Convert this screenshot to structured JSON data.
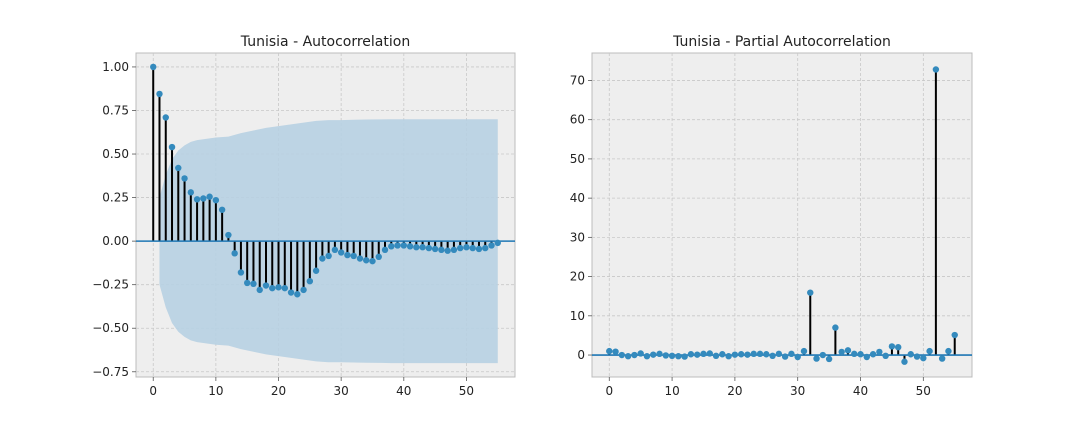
{
  "chart_data": [
    {
      "type": "stem",
      "title": "Tunisia - Autocorrelation",
      "xlabel": "",
      "ylabel": "",
      "xlim": [
        -2.75,
        57.75
      ],
      "ylim": [
        -0.78,
        1.08
      ],
      "xticks": [
        0,
        10,
        20,
        30,
        40,
        50
      ],
      "yticks": [
        -0.75,
        -0.5,
        -0.25,
        0.0,
        0.25,
        0.5,
        0.75,
        1.0
      ],
      "ytick_labels": [
        "−0.75",
        "−0.50",
        "−0.25",
        "0.00",
        "0.25",
        "0.50",
        "0.75",
        "1.00"
      ],
      "grid": true,
      "colors": {
        "marker": "#348abd",
        "band": "#b7d0e2",
        "zero_line": "#1f77b4",
        "stem": "#000000"
      },
      "x": [
        0,
        1,
        2,
        3,
        4,
        5,
        6,
        7,
        8,
        9,
        10,
        11,
        12,
        13,
        14,
        15,
        16,
        17,
        18,
        19,
        20,
        21,
        22,
        23,
        24,
        25,
        26,
        27,
        28,
        29,
        30,
        31,
        32,
        33,
        34,
        35,
        36,
        37,
        38,
        39,
        40,
        41,
        42,
        43,
        44,
        45,
        46,
        47,
        48,
        49,
        50,
        51,
        52,
        53,
        54,
        55
      ],
      "values": [
        1.0,
        0.845,
        0.71,
        0.54,
        0.42,
        0.36,
        0.28,
        0.24,
        0.245,
        0.255,
        0.235,
        0.18,
        0.035,
        -0.07,
        -0.18,
        -0.24,
        -0.245,
        -0.28,
        -0.255,
        -0.27,
        -0.265,
        -0.27,
        -0.295,
        -0.305,
        -0.28,
        -0.23,
        -0.17,
        -0.1,
        -0.085,
        -0.05,
        -0.065,
        -0.08,
        -0.085,
        -0.1,
        -0.11,
        -0.115,
        -0.09,
        -0.05,
        -0.03,
        -0.025,
        -0.025,
        -0.03,
        -0.035,
        -0.035,
        -0.04,
        -0.045,
        -0.05,
        -0.055,
        -0.05,
        -0.04,
        -0.035,
        -0.04,
        -0.045,
        -0.04,
        -0.025,
        -0.01
      ],
      "confidence_band": {
        "x": [
          1,
          2,
          3,
          4,
          5,
          6,
          7,
          8,
          9,
          10,
          12,
          14,
          16,
          18,
          20,
          22,
          24,
          26,
          28,
          30,
          32,
          34,
          36,
          38,
          40,
          45,
          50,
          55
        ],
        "upper": [
          0.25,
          0.38,
          0.47,
          0.52,
          0.55,
          0.57,
          0.58,
          0.585,
          0.59,
          0.595,
          0.6,
          0.62,
          0.635,
          0.65,
          0.66,
          0.67,
          0.68,
          0.69,
          0.695,
          0.695,
          0.697,
          0.698,
          0.699,
          0.7,
          0.7,
          0.7,
          0.7,
          0.7
        ],
        "lower": [
          -0.25,
          -0.38,
          -0.47,
          -0.52,
          -0.55,
          -0.57,
          -0.58,
          -0.585,
          -0.59,
          -0.595,
          -0.6,
          -0.62,
          -0.635,
          -0.65,
          -0.66,
          -0.67,
          -0.68,
          -0.69,
          -0.695,
          -0.695,
          -0.697,
          -0.698,
          -0.699,
          -0.7,
          -0.7,
          -0.7,
          -0.7,
          -0.7
        ]
      }
    },
    {
      "type": "stem",
      "title": "Tunisia - Partial Autocorrelation",
      "xlabel": "",
      "ylabel": "",
      "xlim": [
        -2.75,
        57.75
      ],
      "ylim": [
        -5.6,
        77.0
      ],
      "xticks": [
        0,
        10,
        20,
        30,
        40,
        50
      ],
      "yticks": [
        0,
        10,
        20,
        30,
        40,
        50,
        60,
        70
      ],
      "ytick_labels": [
        "0",
        "10",
        "20",
        "30",
        "40",
        "50",
        "60",
        "70"
      ],
      "grid": true,
      "colors": {
        "marker": "#348abd",
        "zero_line": "#1f77b4",
        "stem": "#000000"
      },
      "x": [
        0,
        1,
        2,
        3,
        4,
        5,
        6,
        7,
        8,
        9,
        10,
        11,
        12,
        13,
        14,
        15,
        16,
        17,
        18,
        19,
        20,
        21,
        22,
        23,
        24,
        25,
        26,
        27,
        28,
        29,
        30,
        31,
        32,
        33,
        34,
        35,
        36,
        37,
        38,
        39,
        40,
        41,
        42,
        43,
        44,
        45,
        46,
        47,
        48,
        49,
        50,
        51,
        52,
        53,
        54,
        55
      ],
      "values": [
        1.0,
        0.85,
        0.0,
        -0.3,
        0.0,
        0.4,
        -0.3,
        0.1,
        0.3,
        -0.1,
        -0.2,
        -0.3,
        -0.4,
        0.2,
        0.1,
        0.3,
        0.4,
        -0.2,
        0.2,
        -0.3,
        0.1,
        0.2,
        0.1,
        0.3,
        0.3,
        0.2,
        -0.2,
        0.3,
        -0.4,
        0.3,
        -0.5,
        1.0,
        15.9,
        -0.9,
        0.0,
        -1.0,
        7.0,
        0.8,
        1.2,
        0.3,
        0.2,
        -0.5,
        0.2,
        0.8,
        -0.2,
        2.2,
        2.0,
        -1.7,
        0.2,
        -0.4,
        -0.8,
        1.0,
        72.8,
        -0.9,
        1.0,
        5.1
      ]
    }
  ]
}
